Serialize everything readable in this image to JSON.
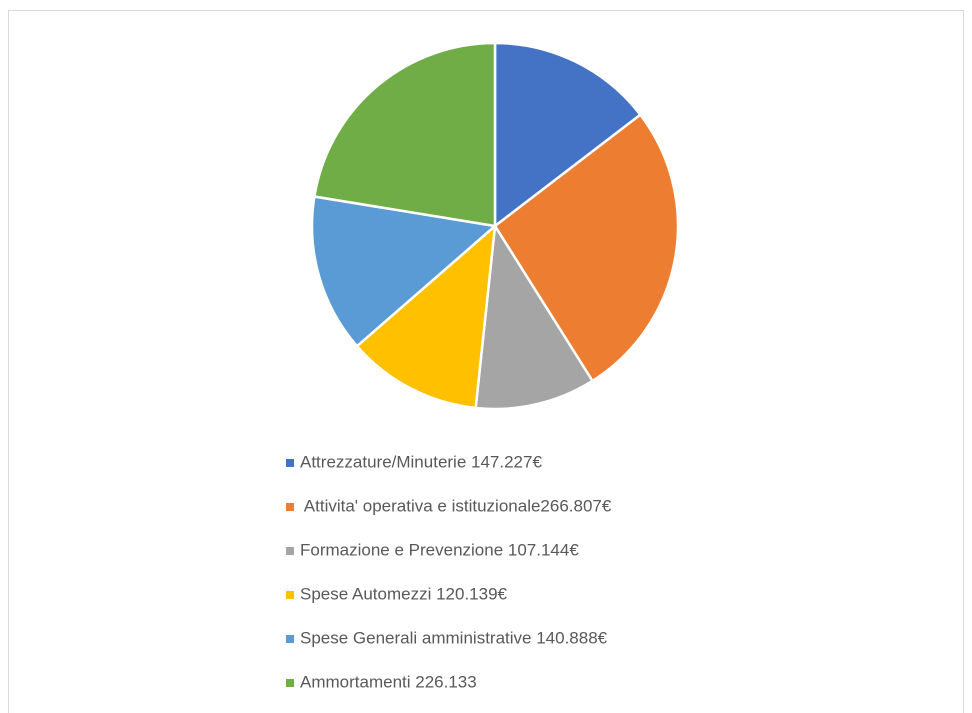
{
  "chart_data": {
    "type": "pie",
    "categories": [
      "Attrezzature/Minuterie 147.227€",
      " Attivita' operativa e istituzionale266.807€",
      "Formazione e Prevenzione 107.144€",
      "Spese Automezzi 120.139€",
      "Spese Generali amministrative 140.888€",
      "Ammortamenti 226.133"
    ],
    "values": [
      147227,
      266807,
      107144,
      120139,
      140888,
      226133
    ],
    "colors": [
      "#4472c4",
      "#ed7d31",
      "#a5a5a5",
      "#ffc000",
      "#5b9bd5",
      "#70ad47"
    ],
    "legend": "bottom"
  }
}
